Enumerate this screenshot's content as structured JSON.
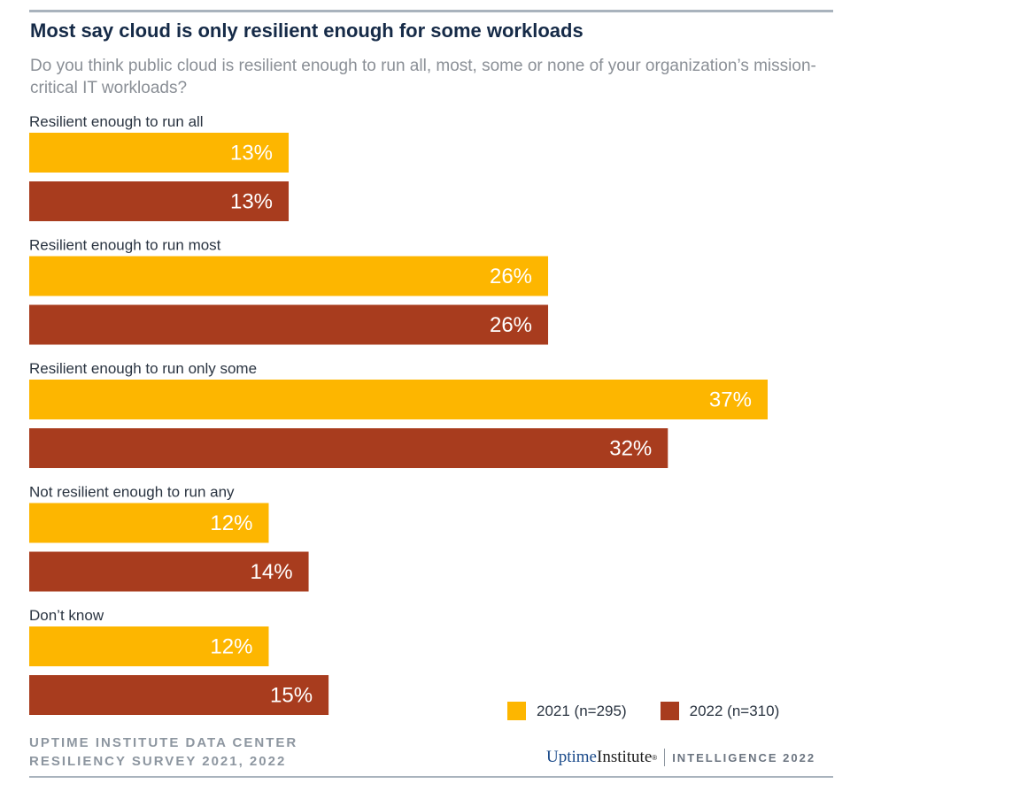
{
  "title": "Most say cloud is only resilient enough for some workloads",
  "subtitle": "Do you think public cloud is resilient enough to run all, most, some or none of your organization’s mission-critical IT workloads?",
  "colors": {
    "series_2021": "#FDB600",
    "series_2022": "#A83C1E"
  },
  "chart_data": {
    "type": "bar",
    "orientation": "horizontal",
    "categories": [
      "Resilient enough to run all",
      "Resilient enough to run most",
      "Resilient enough to run only some",
      "Not resilient enough to run any",
      "Don’t know"
    ],
    "series": [
      {
        "name": "2021 (n=295)",
        "values": [
          13,
          26,
          37,
          12,
          12
        ],
        "labels": [
          "13%",
          "26%",
          "37%",
          "12%",
          "12%"
        ]
      },
      {
        "name": "2022 (n=310)",
        "values": [
          13,
          26,
          32,
          14,
          15
        ],
        "labels": [
          "13%",
          "26%",
          "32%",
          "14%",
          "15%"
        ]
      }
    ],
    "value_format": "percent",
    "xlim": [
      0,
      40
    ]
  },
  "legend": {
    "item_2021": "2021 (n=295)",
    "item_2022": "2022 (n=310)"
  },
  "source": {
    "line1": "UPTIME INSTITUTE DATA CENTER",
    "line2": "RESILIENCY SURVEY 2021, 2022"
  },
  "brand": {
    "uptime": "Uptime",
    "institute": "Institute",
    "mark": "®",
    "intelligence": "INTELLIGENCE 2022"
  }
}
